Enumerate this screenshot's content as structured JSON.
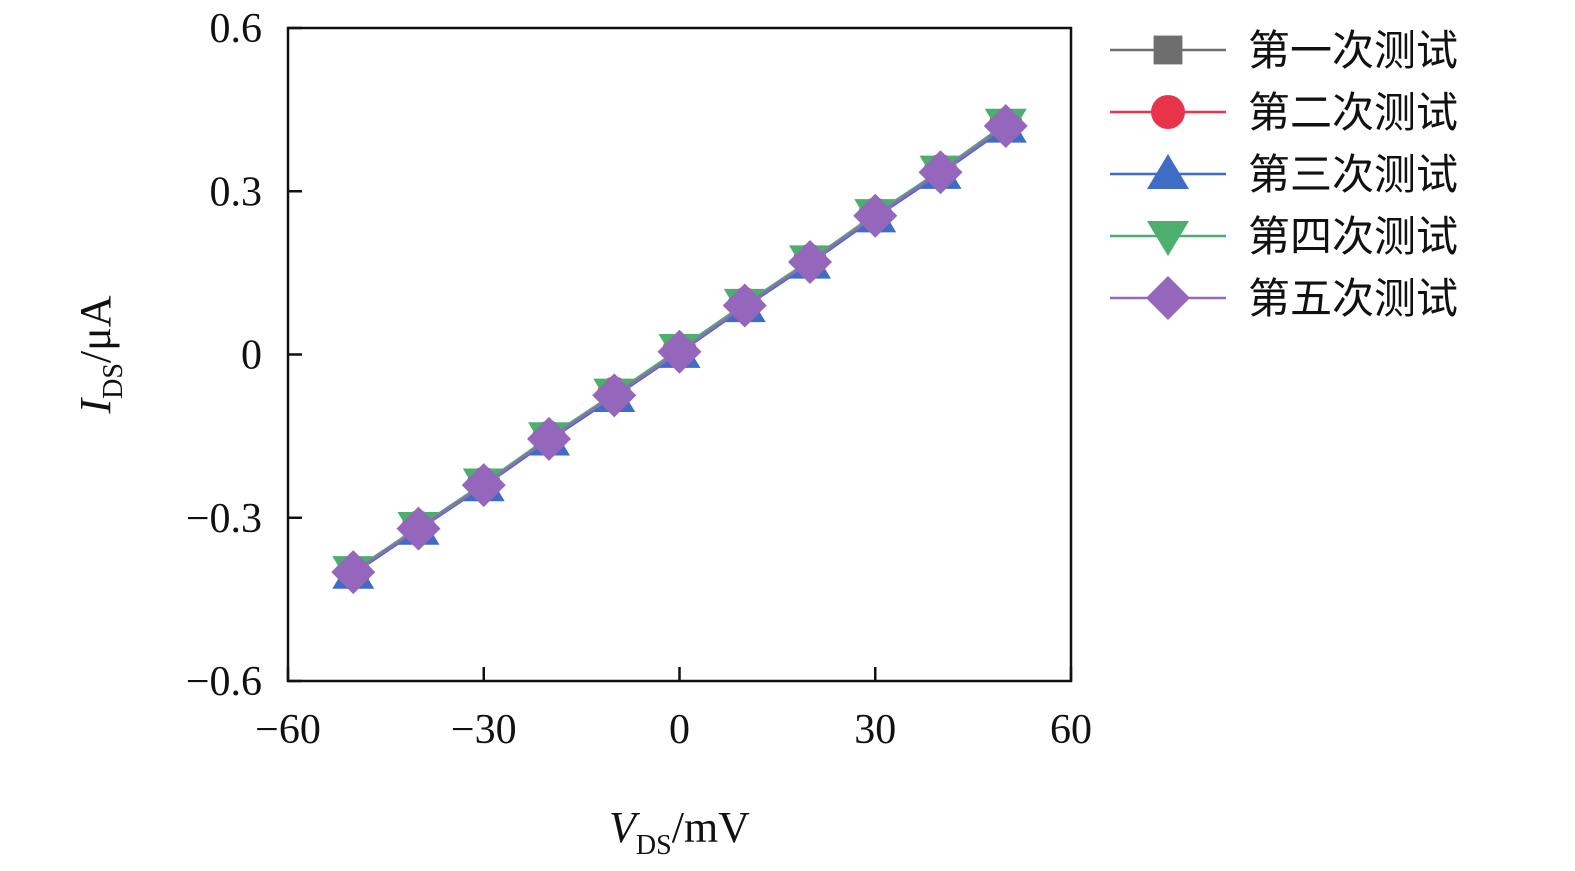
{
  "chart_data": {
    "type": "line",
    "x": [
      -50,
      -40,
      -30,
      -20,
      -10,
      0,
      10,
      20,
      30,
      40,
      50
    ],
    "xlim": [
      -60,
      60
    ],
    "ylim": [
      -0.6,
      0.6
    ],
    "x_ticks": [
      -60,
      -30,
      0,
      30,
      60
    ],
    "y_ticks": [
      0.6,
      0.3,
      0,
      -0.3,
      -0.6
    ],
    "x_tick_labels": [
      "−60",
      "−30",
      "0",
      "30",
      "60"
    ],
    "y_tick_labels": [
      "0.6",
      "0.3",
      "0",
      "−0.3",
      "−0.6"
    ],
    "xlabel": {
      "main": "V",
      "sub": "DS",
      "unit": "/mV"
    },
    "ylabel": {
      "main": "I",
      "sub": "DS",
      "unit": "/μA"
    },
    "grid": false,
    "legend_position": "right",
    "series": [
      {
        "name": "第一次测试",
        "marker": "square",
        "color": "#6e6e6e",
        "values": [
          -0.4,
          -0.32,
          -0.24,
          -0.155,
          -0.075,
          0.005,
          0.09,
          0.17,
          0.255,
          0.335,
          0.42
        ]
      },
      {
        "name": "第二次测试",
        "marker": "circle",
        "color": "#e8344a",
        "values": [
          -0.4,
          -0.318,
          -0.238,
          -0.153,
          -0.072,
          0.008,
          0.092,
          0.172,
          0.257,
          0.337,
          0.422
        ]
      },
      {
        "name": "第三次测试",
        "marker": "triangle-up",
        "color": "#3f6cc4",
        "values": [
          -0.403,
          -0.322,
          -0.242,
          -0.158,
          -0.078,
          0.003,
          0.087,
          0.167,
          0.252,
          0.332,
          0.417
        ]
      },
      {
        "name": "第四次测试",
        "marker": "triangle-down",
        "color": "#4caf6e",
        "values": [
          -0.398,
          -0.317,
          -0.237,
          -0.152,
          -0.072,
          0.01,
          0.093,
          0.173,
          0.258,
          0.338,
          0.424
        ]
      },
      {
        "name": "第五次测试",
        "marker": "diamond",
        "color": "#9467bd",
        "values": [
          -0.4,
          -0.32,
          -0.24,
          -0.155,
          -0.075,
          0.005,
          0.09,
          0.17,
          0.255,
          0.335,
          0.42
        ]
      }
    ]
  }
}
